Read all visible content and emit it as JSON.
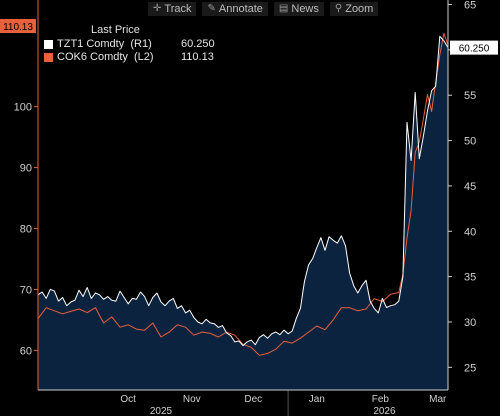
{
  "toolbar": {
    "items": [
      {
        "label": "Track",
        "icon": "crosshair-icon"
      },
      {
        "label": "Annotate",
        "icon": "pencil-icon"
      },
      {
        "label": "News",
        "icon": "news-icon"
      },
      {
        "label": "Zoom",
        "icon": "magnifier-icon"
      }
    ]
  },
  "legend": {
    "title": "Last Price",
    "rows": [
      {
        "label": "TZT1 Comdty  (R1)",
        "value": "60.250",
        "color": "#ffffff"
      },
      {
        "label": "COK6 Comdty  (L2)",
        "value": "110.13",
        "color": "#e8603c"
      }
    ]
  },
  "chart_data": {
    "type": "line",
    "x_unit": "date",
    "x_range": [
      "2025-09-01",
      "2026-03-20"
    ],
    "x_ticks": [
      {
        "label": "Oct",
        "date": "2025-10-15"
      },
      {
        "label": "Nov",
        "date": "2025-11-15"
      },
      {
        "label": "Dec",
        "date": "2025-12-15"
      },
      {
        "label": "Jan",
        "date": "2026-01-15"
      },
      {
        "label": "Feb",
        "date": "2026-02-15"
      },
      {
        "label": "Mar",
        "date": "2026-03-15"
      }
    ],
    "year_labels": [
      {
        "label": "2025",
        "date": "2025-10-31"
      },
      {
        "label": "2026",
        "date": "2026-02-17"
      }
    ],
    "year_divider": "2026-01-01",
    "left_axis": {
      "ticks": [
        60,
        70,
        80,
        90,
        100
      ],
      "range": [
        53.5,
        117.5
      ],
      "color": "#e8603c"
    },
    "right_axis": {
      "ticks": [
        25,
        30,
        35,
        40,
        45,
        50,
        55,
        60,
        65
      ],
      "range": [
        22.5,
        65.5
      ]
    },
    "grid": false,
    "legend_position": "top-left",
    "series": [
      {
        "name": "TZT1 Comdty",
        "axis": "right",
        "color": "#ffffff",
        "fill": "#0c2340",
        "last_value": 60.25,
        "last_label": "60.250",
        "points": [
          [
            "2025-09-01",
            33.0
          ],
          [
            "2025-09-03",
            33.3
          ],
          [
            "2025-09-05",
            32.6
          ],
          [
            "2025-09-07",
            33.6
          ],
          [
            "2025-09-09",
            33.4
          ],
          [
            "2025-09-11",
            32.3
          ],
          [
            "2025-09-13",
            32.7
          ],
          [
            "2025-09-15",
            31.8
          ],
          [
            "2025-09-17",
            32.2
          ],
          [
            "2025-09-19",
            32.4
          ],
          [
            "2025-09-21",
            33.5
          ],
          [
            "2025-09-23",
            32.8
          ],
          [
            "2025-09-25",
            33.8
          ],
          [
            "2025-09-27",
            32.6
          ],
          [
            "2025-09-29",
            33.2
          ],
          [
            "2025-10-01",
            33.0
          ],
          [
            "2025-10-03",
            32.5
          ],
          [
            "2025-10-05",
            32.8
          ],
          [
            "2025-10-07",
            32.4
          ],
          [
            "2025-10-09",
            32.3
          ],
          [
            "2025-10-11",
            33.4
          ],
          [
            "2025-10-13",
            32.7
          ],
          [
            "2025-10-15",
            32.0
          ],
          [
            "2025-10-17",
            32.6
          ],
          [
            "2025-10-19",
            32.5
          ],
          [
            "2025-10-21",
            33.3
          ],
          [
            "2025-10-23",
            32.8
          ],
          [
            "2025-10-25",
            31.8
          ],
          [
            "2025-10-27",
            32.7
          ],
          [
            "2025-10-29",
            33.2
          ],
          [
            "2025-10-31",
            32.2
          ],
          [
            "2025-11-02",
            31.8
          ],
          [
            "2025-11-04",
            32.3
          ],
          [
            "2025-11-06",
            32.6
          ],
          [
            "2025-11-08",
            31.5
          ],
          [
            "2025-11-10",
            31.8
          ],
          [
            "2025-11-12",
            31.0
          ],
          [
            "2025-11-14",
            31.3
          ],
          [
            "2025-11-16",
            30.5
          ],
          [
            "2025-11-18",
            30.0
          ],
          [
            "2025-11-20",
            29.8
          ],
          [
            "2025-11-22",
            30.3
          ],
          [
            "2025-11-24",
            29.9
          ],
          [
            "2025-11-26",
            29.8
          ],
          [
            "2025-11-28",
            29.4
          ],
          [
            "2025-11-30",
            29.6
          ],
          [
            "2025-12-02",
            28.8
          ],
          [
            "2025-12-04",
            28.5
          ],
          [
            "2025-12-06",
            27.8
          ],
          [
            "2025-12-08",
            27.9
          ],
          [
            "2025-12-10",
            27.4
          ],
          [
            "2025-12-12",
            27.8
          ],
          [
            "2025-12-14",
            28.0
          ],
          [
            "2025-12-16",
            27.5
          ],
          [
            "2025-12-18",
            28.3
          ],
          [
            "2025-12-20",
            28.6
          ],
          [
            "2025-12-22",
            28.2
          ],
          [
            "2025-12-24",
            28.7
          ],
          [
            "2025-12-26",
            28.9
          ],
          [
            "2025-12-28",
            28.6
          ],
          [
            "2025-12-30",
            29.1
          ],
          [
            "2026-01-01",
            28.7
          ],
          [
            "2026-01-03",
            29.0
          ],
          [
            "2026-01-05",
            30.4
          ],
          [
            "2026-01-07",
            31.5
          ],
          [
            "2026-01-09",
            34.5
          ],
          [
            "2026-01-11",
            36.3
          ],
          [
            "2026-01-13",
            37.0
          ],
          [
            "2026-01-15",
            38.2
          ],
          [
            "2026-01-17",
            39.3
          ],
          [
            "2026-01-19",
            37.9
          ],
          [
            "2026-01-21",
            39.4
          ],
          [
            "2026-01-23",
            39.0
          ],
          [
            "2026-01-25",
            38.7
          ],
          [
            "2026-01-27",
            39.5
          ],
          [
            "2026-01-29",
            38.4
          ],
          [
            "2026-01-31",
            35.4
          ],
          [
            "2026-02-02",
            34.0
          ],
          [
            "2026-02-04",
            33.2
          ],
          [
            "2026-02-06",
            34.0
          ],
          [
            "2026-02-08",
            34.6
          ],
          [
            "2026-02-10",
            32.3
          ],
          [
            "2026-02-12",
            31.5
          ],
          [
            "2026-02-14",
            31.0
          ],
          [
            "2026-02-16",
            32.6
          ],
          [
            "2026-02-18",
            31.6
          ],
          [
            "2026-02-20",
            31.8
          ],
          [
            "2026-02-22",
            31.9
          ],
          [
            "2026-02-24",
            32.3
          ],
          [
            "2026-02-26",
            35.0
          ],
          [
            "2026-02-28",
            52.0
          ],
          [
            "2026-03-02",
            47.8
          ],
          [
            "2026-03-04",
            55.3
          ],
          [
            "2026-03-06",
            48.0
          ],
          [
            "2026-03-08",
            50.5
          ],
          [
            "2026-03-10",
            53.3
          ],
          [
            "2026-03-12",
            55.5
          ],
          [
            "2026-03-14",
            56.0
          ],
          [
            "2026-03-16",
            61.5
          ],
          [
            "2026-03-18",
            61.0
          ],
          [
            "2026-03-20",
            60.25
          ]
        ]
      },
      {
        "name": "COK6 Comdty",
        "axis": "left",
        "color": "#e8603c",
        "last_value": 110.13,
        "last_label": "110.13",
        "points": [
          [
            "2025-09-01",
            65.2
          ],
          [
            "2025-09-05",
            67.0
          ],
          [
            "2025-09-09",
            66.5
          ],
          [
            "2025-09-13",
            66.0
          ],
          [
            "2025-09-17",
            66.4
          ],
          [
            "2025-09-21",
            66.8
          ],
          [
            "2025-09-25",
            66.2
          ],
          [
            "2025-09-29",
            67.0
          ],
          [
            "2025-10-03",
            64.5
          ],
          [
            "2025-10-07",
            65.5
          ],
          [
            "2025-10-11",
            63.8
          ],
          [
            "2025-10-15",
            64.2
          ],
          [
            "2025-10-19",
            63.5
          ],
          [
            "2025-10-23",
            63.3
          ],
          [
            "2025-10-27",
            64.5
          ],
          [
            "2025-10-31",
            62.2
          ],
          [
            "2025-11-04",
            63.0
          ],
          [
            "2025-11-08",
            64.2
          ],
          [
            "2025-11-12",
            63.8
          ],
          [
            "2025-11-16",
            62.5
          ],
          [
            "2025-11-20",
            63.0
          ],
          [
            "2025-11-24",
            62.8
          ],
          [
            "2025-11-28",
            62.2
          ],
          [
            "2025-12-02",
            63.0
          ],
          [
            "2025-12-06",
            62.5
          ],
          [
            "2025-12-10",
            61.0
          ],
          [
            "2025-12-14",
            60.5
          ],
          [
            "2025-12-18",
            59.2
          ],
          [
            "2025-12-22",
            59.5
          ],
          [
            "2025-12-26",
            60.2
          ],
          [
            "2025-12-30",
            61.5
          ],
          [
            "2026-01-03",
            61.2
          ],
          [
            "2026-01-07",
            62.0
          ],
          [
            "2026-01-11",
            63.0
          ],
          [
            "2026-01-15",
            64.0
          ],
          [
            "2026-01-19",
            63.4
          ],
          [
            "2026-01-23",
            65.0
          ],
          [
            "2026-01-27",
            67.0
          ],
          [
            "2026-01-31",
            67.0
          ],
          [
            "2026-02-04",
            66.5
          ],
          [
            "2026-02-08",
            66.8
          ],
          [
            "2026-02-12",
            68.5
          ],
          [
            "2026-02-16",
            68.0
          ],
          [
            "2026-02-20",
            69.2
          ],
          [
            "2026-02-24",
            69.5
          ],
          [
            "2026-02-26",
            72.5
          ],
          [
            "2026-02-28",
            78.5
          ],
          [
            "2026-03-02",
            83.0
          ],
          [
            "2026-03-04",
            92.5
          ],
          [
            "2026-03-06",
            94.2
          ],
          [
            "2026-03-08",
            98.0
          ],
          [
            "2026-03-10",
            102.0
          ],
          [
            "2026-03-12",
            99.2
          ],
          [
            "2026-03-14",
            104.0
          ],
          [
            "2026-03-16",
            108.5
          ],
          [
            "2026-03-18",
            112.0
          ],
          [
            "2026-03-20",
            110.13
          ]
        ]
      }
    ]
  }
}
